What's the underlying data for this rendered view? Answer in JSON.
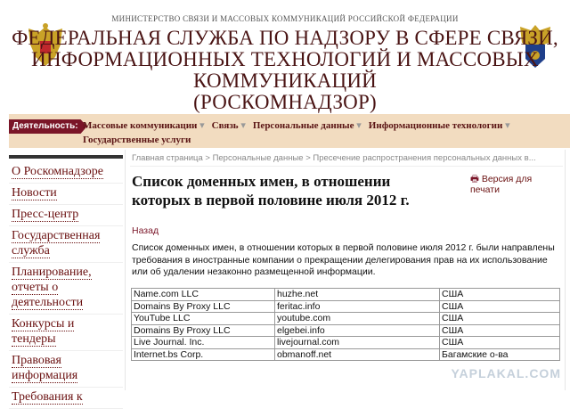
{
  "header": {
    "ministry": "МИНИСТЕРСТВО СВЯЗИ И МАССОВЫХ КОММУНИКАЦИЙ РОССИЙСКОЙ ФЕДЕРАЦИИ",
    "title_lines": [
      "ФЕДЕРАЛЬНАЯ СЛУЖБА ПО НАДЗОРУ В СФЕРЕ СВЯЗИ,",
      "ИНФОРМАЦИОННЫХ ТЕХНОЛОГИЙ И МАССОВЫХ",
      "КОММУНИКАЦИЙ",
      "(РОСКОМНАДЗОР)"
    ]
  },
  "nav": {
    "label": "Деятельность:",
    "items": [
      "Массовые коммуникации",
      "Связь",
      "Персональные данные",
      "Информационные технологии",
      "Государственные услуги"
    ]
  },
  "sidebar": {
    "items": [
      "О Роскомнадзоре",
      "Новости",
      "Пресс-центр",
      "Государственная служба",
      "Планирование, отчеты о деятельности",
      "Конкурсы и тендеры",
      "Правовая информация",
      "Требования к"
    ]
  },
  "breadcrumb": "Главная страница > Персональные данные > Пресечение распространения персональных данных в...",
  "page_title": "Список доменных имен, в отношении которых в первой половине июля 2012 г.",
  "print_label": "Версия для печати",
  "back_label": "Назад",
  "paragraph": "Список доменных имен, в отношении которых в первой половине июля 2012 г. были направлены требования в иностранные компании о прекращении делегирования прав на их использование или об удалении незаконно размещенной информации.",
  "table": [
    [
      "Name.com LLC",
      "huzhe.net",
      "США"
    ],
    [
      "Domains By Proxy LLC",
      "feritac.info",
      "США"
    ],
    [
      "YouTube LLC",
      "youtube.com",
      "США"
    ],
    [
      "Domains By Proxy LLC",
      "elgebei.info",
      "США"
    ],
    [
      "Live Journal. Inc.",
      "livejournal.com",
      "США"
    ],
    [
      "Internet.bs Corp.",
      "obmanoff.net",
      "Багамские о-ва"
    ]
  ],
  "watermark": "YAPLAKAL.COM",
  "colors": {
    "brand": "#7a1528",
    "nav_bg": "#f2dcc0",
    "title": "#4a1414"
  }
}
